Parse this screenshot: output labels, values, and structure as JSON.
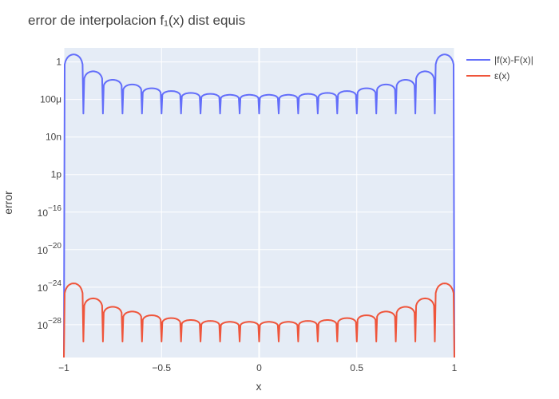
{
  "chart_data": {
    "type": "line",
    "title": "error de interpolacion f₁(x) dist equis",
    "xlabel": "x",
    "ylabel": "error",
    "xlim": [
      -1,
      1
    ],
    "ylim_log10": [
      -31.5,
      1.5
    ],
    "y_scale": "log",
    "grid": true,
    "legend_position": "right",
    "x_ticks": [
      {
        "value": -1,
        "label": "−1"
      },
      {
        "value": -0.5,
        "label": "−0.5"
      },
      {
        "value": 0,
        "label": "0"
      },
      {
        "value": 0.5,
        "label": "0.5"
      },
      {
        "value": 1,
        "label": "1"
      }
    ],
    "y_ticks": [
      {
        "log10": 0,
        "label": "1",
        "mant": "",
        "exp": ""
      },
      {
        "log10": -4,
        "label": "100μ",
        "mant": "",
        "exp": ""
      },
      {
        "log10": -8,
        "label": "10n",
        "mant": "",
        "exp": ""
      },
      {
        "log10": -12,
        "label": "1p",
        "mant": "",
        "exp": ""
      },
      {
        "log10": -16,
        "label": "",
        "mant": "10",
        "exp": "−16"
      },
      {
        "log10": -20,
        "label": "",
        "mant": "10",
        "exp": "−20"
      },
      {
        "log10": -24,
        "label": "",
        "mant": "10",
        "exp": "−24"
      },
      {
        "log10": -28,
        "label": "",
        "mant": "10",
        "exp": "−28"
      }
    ],
    "interp_nodes_x": [
      -1,
      -0.9,
      -0.8,
      -0.7,
      -0.6,
      -0.5,
      -0.4,
      -0.3,
      -0.2,
      -0.1,
      0,
      0.1,
      0.2,
      0.3,
      0.4,
      0.5,
      0.6,
      0.7,
      0.8,
      0.9,
      1
    ],
    "series": [
      {
        "name": "|f(x)-F(x)|",
        "color": "#636efa",
        "peak_x": [
          -0.98,
          -0.845,
          -0.745,
          -0.645,
          -0.55,
          -0.45,
          -0.35,
          -0.25,
          -0.15,
          -0.05,
          0.05,
          0.15,
          0.25,
          0.35,
          0.45,
          0.55,
          0.645,
          0.745,
          0.845,
          0.98
        ],
        "peak_log10_y": [
          0.8,
          -1.0,
          -1.9,
          -2.4,
          -2.8,
          -3.1,
          -3.3,
          -3.4,
          -3.5,
          -3.5,
          -3.5,
          -3.5,
          -3.4,
          -3.3,
          -3.1,
          -2.8,
          -2.4,
          -1.9,
          -1.0,
          0.8
        ],
        "dip_log10_y": -5.5
      },
      {
        "name": "ε(x)",
        "color": "#ef553b",
        "peak_x": [
          -0.98,
          -0.845,
          -0.745,
          -0.645,
          -0.55,
          -0.45,
          -0.35,
          -0.25,
          -0.15,
          -0.05,
          0.05,
          0.15,
          0.25,
          0.35,
          0.45,
          0.55,
          0.645,
          0.745,
          0.845,
          0.98
        ],
        "peak_log10_y": [
          -23.6,
          -25.2,
          -26.1,
          -26.6,
          -27.0,
          -27.3,
          -27.5,
          -27.6,
          -27.7,
          -27.7,
          -27.7,
          -27.7,
          -27.6,
          -27.5,
          -27.3,
          -27.0,
          -26.6,
          -26.1,
          -25.2,
          -23.6
        ],
        "dip_log10_y": -29.8
      }
    ]
  }
}
